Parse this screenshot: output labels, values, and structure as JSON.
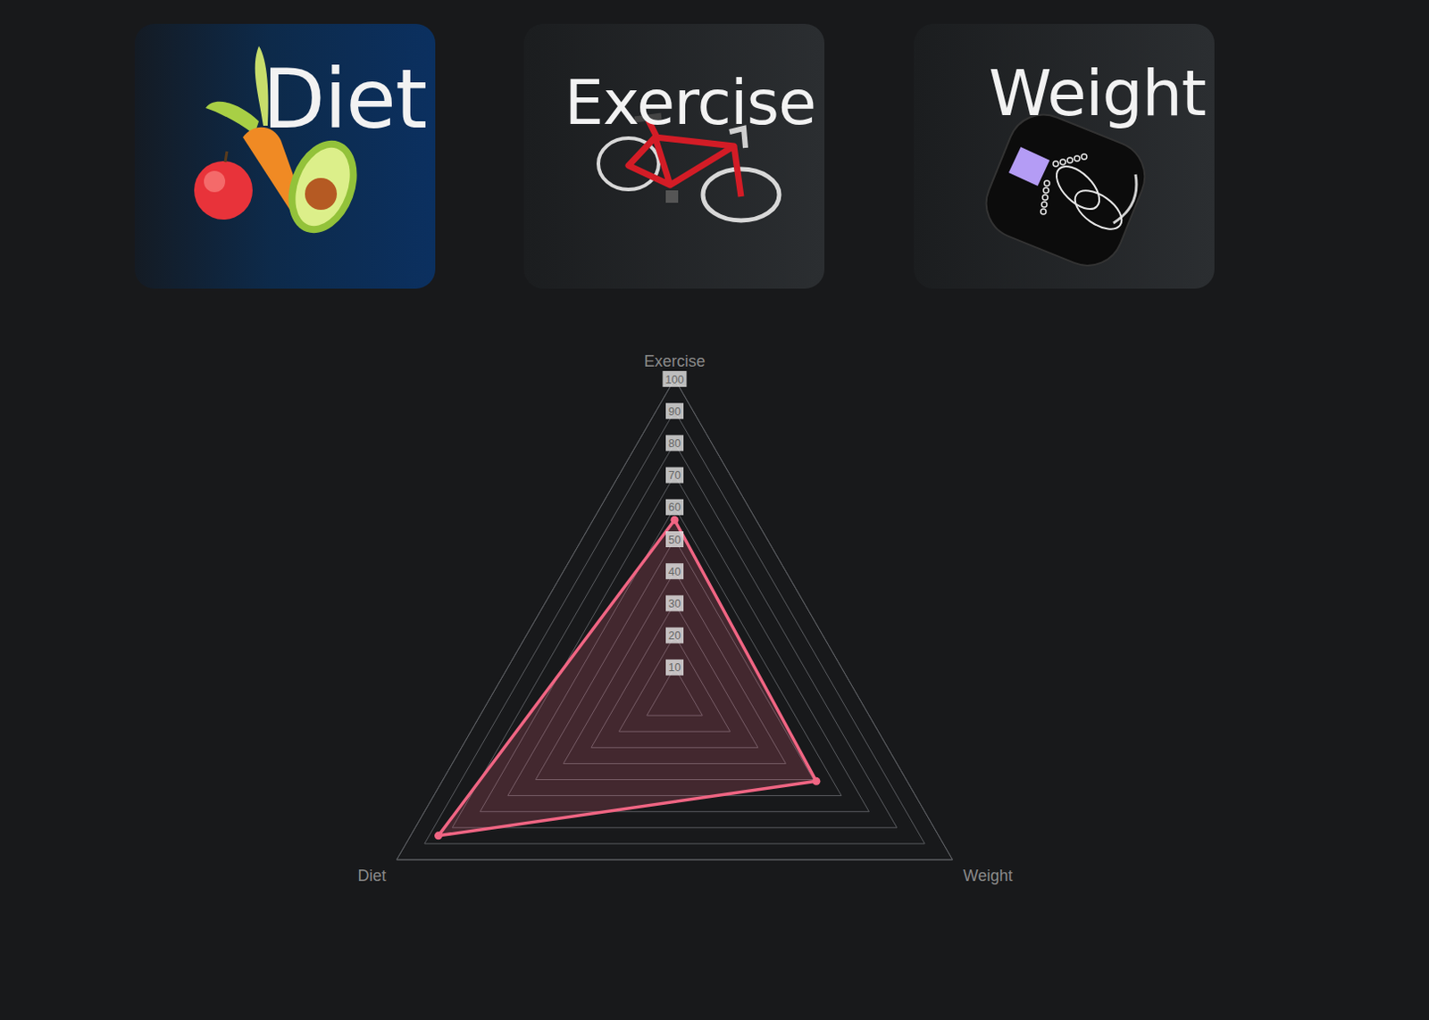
{
  "cards": [
    {
      "label": "Diet"
    },
    {
      "label": "Exercise"
    },
    {
      "label": "Weight"
    }
  ],
  "chart_data": {
    "type": "radar",
    "categories": [
      "Exercise",
      "Weight",
      "Diet"
    ],
    "values": [
      56,
      51,
      85
    ],
    "color": "#f06583",
    "ylim": [
      0,
      100
    ],
    "yticks": [
      10,
      20,
      30,
      40,
      50,
      60,
      70,
      80,
      90,
      100
    ],
    "grid": true
  }
}
